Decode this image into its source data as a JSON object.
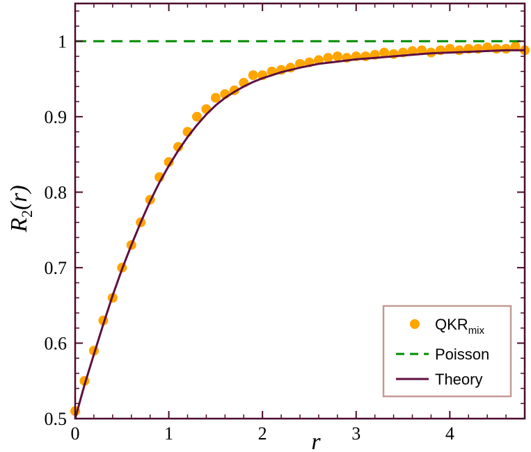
{
  "chart_data": {
    "type": "scatter",
    "title": "",
    "xlabel": "r",
    "ylabel": {
      "main": "R",
      "sub": "2",
      "rest": "(r)"
    },
    "xlim": [
      0,
      4.8
    ],
    "ylim": [
      0.5,
      1.05
    ],
    "xticks": [
      0,
      1,
      2,
      3,
      4
    ],
    "xtick_labels": [
      "0",
      "1",
      "2",
      "3",
      "4"
    ],
    "yticks": [
      0.5,
      0.6,
      0.7,
      0.8,
      0.9,
      1.0
    ],
    "ytick_labels": [
      "0.5",
      "0.6",
      "0.7",
      "0.8",
      "0.9",
      "1"
    ],
    "grid": false,
    "legend_position": "bottom-right",
    "colors": {
      "points": "#ffa500",
      "poisson": "#008b00",
      "theory": "#5e0f3f",
      "frame": "#4a0a2e",
      "legend_border": "#c29a93"
    },
    "series": [
      {
        "kind": "points",
        "name": "QKR",
        "name_sub": "mix",
        "x": [
          0.0,
          0.1,
          0.2,
          0.3,
          0.4,
          0.5,
          0.6,
          0.7,
          0.8,
          0.9,
          1.0,
          1.1,
          1.2,
          1.3,
          1.4,
          1.5,
          1.6,
          1.7,
          1.8,
          1.9,
          2.0,
          2.1,
          2.2,
          2.3,
          2.4,
          2.5,
          2.6,
          2.7,
          2.8,
          2.9,
          3.0,
          3.1,
          3.2,
          3.3,
          3.4,
          3.5,
          3.6,
          3.7,
          3.8,
          3.9,
          4.0,
          4.1,
          4.2,
          4.3,
          4.4,
          4.5,
          4.6,
          4.7,
          4.8
        ],
        "y": [
          0.51,
          0.55,
          0.59,
          0.63,
          0.66,
          0.7,
          0.73,
          0.76,
          0.79,
          0.82,
          0.84,
          0.86,
          0.88,
          0.9,
          0.91,
          0.925,
          0.93,
          0.935,
          0.945,
          0.955,
          0.955,
          0.96,
          0.962,
          0.965,
          0.97,
          0.972,
          0.975,
          0.978,
          0.98,
          0.978,
          0.98,
          0.98,
          0.982,
          0.985,
          0.983,
          0.985,
          0.987,
          0.988,
          0.985,
          0.988,
          0.99,
          0.988,
          0.99,
          0.99,
          0.992,
          0.99,
          0.99,
          0.993,
          0.988
        ]
      },
      {
        "kind": "dashed",
        "name": "Poisson",
        "x": [
          0,
          4.8
        ],
        "y": [
          1.0,
          1.0
        ]
      },
      {
        "kind": "line",
        "name": "Theory",
        "x": [
          0.0,
          0.1,
          0.2,
          0.3,
          0.4,
          0.5,
          0.6,
          0.7,
          0.8,
          0.9,
          1.0,
          1.1,
          1.2,
          1.3,
          1.4,
          1.5,
          1.6,
          1.7,
          1.8,
          1.9,
          2.0,
          2.2,
          2.4,
          2.6,
          2.8,
          3.0,
          3.2,
          3.4,
          3.6,
          3.8,
          4.0,
          4.2,
          4.4,
          4.6,
          4.8
        ],
        "y": [
          0.5,
          0.545,
          0.585,
          0.625,
          0.663,
          0.698,
          0.73,
          0.76,
          0.788,
          0.813,
          0.835,
          0.855,
          0.873,
          0.889,
          0.903,
          0.915,
          0.925,
          0.933,
          0.94,
          0.946,
          0.951,
          0.959,
          0.965,
          0.97,
          0.973,
          0.976,
          0.978,
          0.98,
          0.982,
          0.984,
          0.985,
          0.986,
          0.987,
          0.988,
          0.988
        ]
      }
    ]
  }
}
